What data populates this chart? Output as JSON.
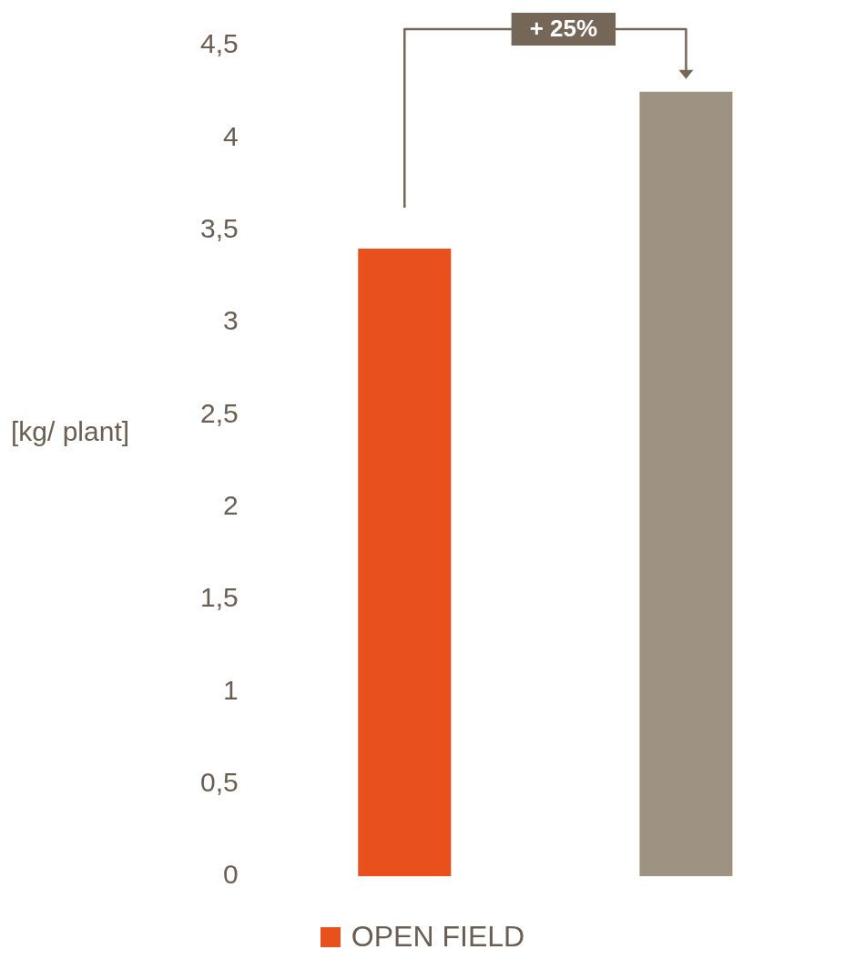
{
  "chart_data": {
    "type": "bar",
    "categories": [
      "OPEN FIELD",
      null
    ],
    "values": [
      3.4,
      4.25
    ],
    "colors": [
      "#e8501e",
      "#9e9282"
    ],
    "ylabel": "[kg/ plant]",
    "ylim": [
      0,
      4.5
    ],
    "yticks": [
      0,
      {
        "value": 0.5,
        "label": "0,5"
      },
      1,
      {
        "value": 1.5,
        "label": "1,5"
      },
      2,
      {
        "value": 2.5,
        "label": "2,5"
      },
      3,
      {
        "value": 3.5,
        "label": "3,5"
      },
      4,
      {
        "value": 4.5,
        "label": "4,5"
      }
    ],
    "tick_labels": "y",
    "annotations": [
      "+ 25%"
    ],
    "grid": false
  }
}
